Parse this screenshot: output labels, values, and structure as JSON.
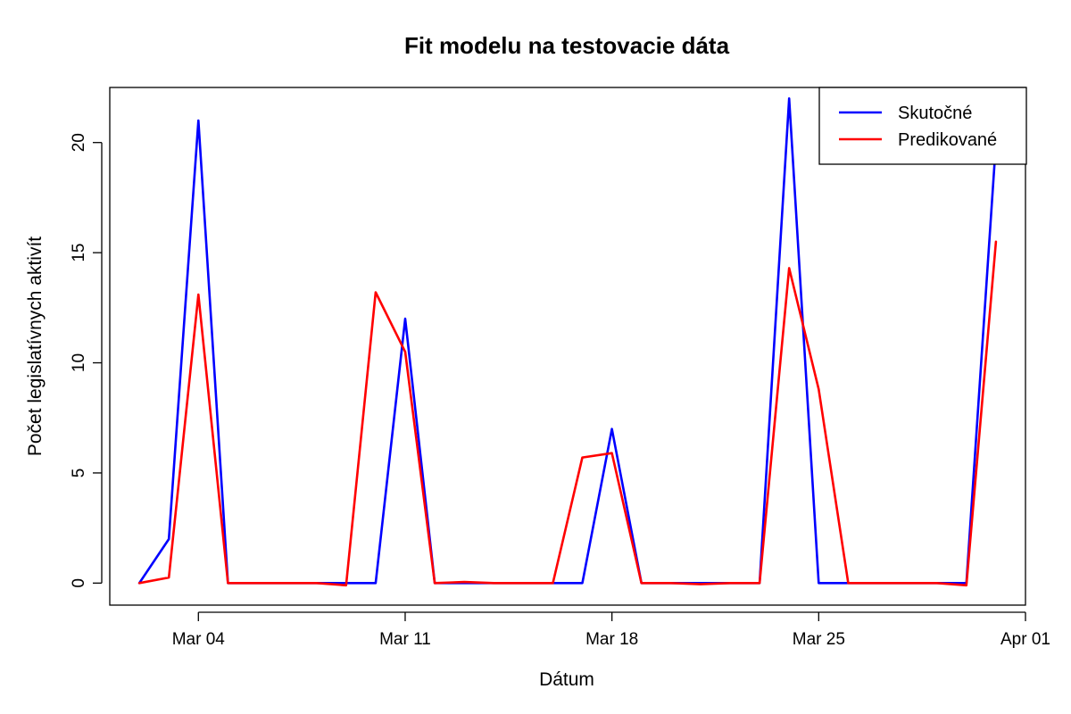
{
  "chart_data": {
    "type": "line",
    "title": "Fit modelu na testovacie dáta",
    "xlabel": "Dátum",
    "ylabel": "Počet legislatívnych aktivít",
    "x": [
      "2024-03-02",
      "2024-03-03",
      "2024-03-04",
      "2024-03-05",
      "2024-03-06",
      "2024-03-07",
      "2024-03-08",
      "2024-03-09",
      "2024-03-10",
      "2024-03-11",
      "2024-03-12",
      "2024-03-13",
      "2024-03-14",
      "2024-03-15",
      "2024-03-16",
      "2024-03-17",
      "2024-03-18",
      "2024-03-19",
      "2024-03-20",
      "2024-03-21",
      "2024-03-22",
      "2024-03-23",
      "2024-03-24",
      "2024-03-25",
      "2024-03-26",
      "2024-03-27",
      "2024-03-28",
      "2024-03-29",
      "2024-03-30",
      "2024-03-31"
    ],
    "series": [
      {
        "name": "Skutočné",
        "color": "#0000ff",
        "values": [
          0,
          2,
          21,
          0,
          0,
          0,
          0,
          0,
          0,
          12,
          0,
          0,
          0,
          0,
          0,
          0,
          7,
          0,
          0,
          0,
          0,
          0,
          22,
          0,
          0,
          0,
          0,
          0,
          0,
          20
        ]
      },
      {
        "name": "Predikované",
        "color": "#ff0000",
        "values": [
          0,
          0.25,
          13.1,
          0,
          0,
          0,
          0,
          -0.1,
          13.2,
          10.5,
          0,
          0.05,
          0,
          0,
          0,
          5.7,
          5.9,
          0,
          0,
          -0.05,
          0,
          0,
          14.3,
          8.8,
          0,
          0,
          0,
          0,
          -0.1,
          15.5
        ]
      }
    ],
    "x_ticks": [
      {
        "date": "2024-03-04",
        "label": "Mar 04"
      },
      {
        "date": "2024-03-11",
        "label": "Mar 11"
      },
      {
        "date": "2024-03-18",
        "label": "Mar 18"
      },
      {
        "date": "2024-03-25",
        "label": "Mar 25"
      },
      {
        "date": "2024-04-01",
        "label": "Apr 01"
      }
    ],
    "y_ticks": [
      0,
      5,
      10,
      15,
      20
    ],
    "xlim": [
      "2024-03-01",
      "2024-04-01"
    ],
    "ylim": [
      -1,
      22.5
    ],
    "legend": {
      "position": "top-right"
    },
    "grid": false
  }
}
